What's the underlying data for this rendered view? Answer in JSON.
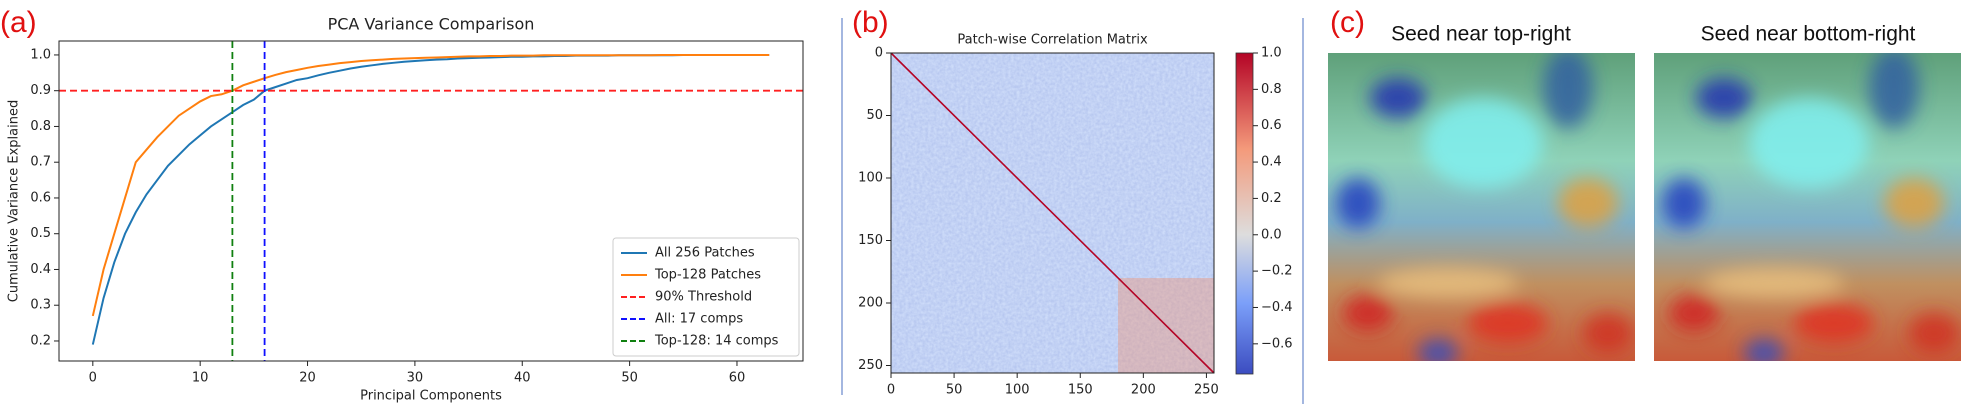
{
  "panels": [
    "(a)",
    "(b)",
    "(c)"
  ],
  "chart_data": [
    {
      "type": "line",
      "title": "PCA Variance Comparison",
      "xlabel": "Principal Components",
      "ylabel": "Cumulative Variance Explained",
      "x": [
        0,
        1,
        2,
        3,
        4,
        5,
        6,
        7,
        8,
        9,
        10,
        11,
        12,
        13,
        14,
        15,
        16,
        17,
        18,
        19,
        20,
        21,
        22,
        23,
        24,
        25,
        26,
        27,
        28,
        29,
        30,
        31,
        32,
        33,
        34,
        35,
        36,
        37,
        38,
        39,
        40,
        41,
        42,
        43,
        44,
        45,
        46,
        47,
        48,
        49,
        50,
        51,
        52,
        53,
        54,
        55,
        56,
        57,
        58,
        59,
        60,
        61,
        62,
        63
      ],
      "series": [
        {
          "name": "All 256 Patches",
          "color": "#1f77b4",
          "values": [
            0.19,
            0.32,
            0.42,
            0.5,
            0.56,
            0.61,
            0.65,
            0.69,
            0.72,
            0.75,
            0.775,
            0.8,
            0.82,
            0.84,
            0.86,
            0.875,
            0.9,
            0.91,
            0.92,
            0.93,
            0.935,
            0.943,
            0.95,
            0.956,
            0.962,
            0.967,
            0.971,
            0.975,
            0.978,
            0.981,
            0.983,
            0.985,
            0.987,
            0.988,
            0.99,
            0.991,
            0.992,
            0.993,
            0.994,
            0.995,
            0.995,
            0.996,
            0.996,
            0.997,
            0.997,
            0.998,
            0.998,
            0.998,
            0.998,
            0.999,
            0.999,
            0.999,
            0.999,
            0.999,
            0.999,
            1,
            1,
            1,
            1,
            1,
            1,
            1,
            1,
            1
          ]
        },
        {
          "name": "Top-128 Patches",
          "color": "#ff7f0e",
          "values": [
            0.27,
            0.4,
            0.5,
            0.6,
            0.7,
            0.735,
            0.77,
            0.8,
            0.83,
            0.85,
            0.87,
            0.885,
            0.89,
            0.9,
            0.915,
            0.925,
            0.935,
            0.944,
            0.952,
            0.958,
            0.964,
            0.969,
            0.973,
            0.977,
            0.98,
            0.983,
            0.985,
            0.987,
            0.989,
            0.99,
            0.991,
            0.992,
            0.993,
            0.994,
            0.995,
            0.996,
            0.996,
            0.997,
            0.997,
            0.998,
            0.998,
            0.998,
            0.999,
            0.999,
            0.999,
            0.999,
            0.999,
            0.999,
            0.999,
            0.999,
            0.999,
            0.999,
            0.999,
            1,
            1,
            1,
            1,
            1,
            1,
            1,
            1,
            1,
            1,
            1
          ]
        }
      ],
      "reference_lines": [
        {
          "name": "90% Threshold",
          "orientation": "h",
          "value": 0.9,
          "color": "#ff2020"
        },
        {
          "name": "All: 17 comps",
          "orientation": "v",
          "value": 16,
          "color": "#1010ff"
        },
        {
          "name": "Top-128: 14 comps",
          "orientation": "v",
          "value": 13,
          "color": "#108010"
        }
      ],
      "xlim": [
        -3.15,
        66.15
      ],
      "xticks": [
        0,
        10,
        20,
        30,
        40,
        50,
        60
      ],
      "ylim": [
        0.144,
        1.039
      ],
      "yticks": [
        0.2,
        0.3,
        0.4,
        0.5,
        0.6,
        0.7,
        0.8,
        0.9,
        {
          "value": 1,
          "label": "1.0"
        }
      ],
      "legend": "lower right"
    },
    {
      "type": "heatmap",
      "title": "Patch-wise Correlation Matrix",
      "xlim": [
        0,
        256
      ],
      "ylim": [
        256,
        0
      ],
      "xticks": [
        0,
        50,
        100,
        150,
        200,
        250
      ],
      "yticks": [
        0,
        50,
        100,
        150,
        200,
        250
      ],
      "clim": [
        -0.766,
        1.0
      ],
      "cticks": [
        {
          "value": -0.6,
          "label": "−0.6"
        },
        {
          "value": -0.4,
          "label": "−0.4"
        },
        {
          "value": -0.2,
          "label": "−0.2"
        },
        {
          "value": 0,
          "label": "0.0"
        },
        0.2,
        0.4,
        0.6,
        0.8,
        {
          "value": 1,
          "label": "1.0"
        }
      ]
    },
    {
      "type": "image",
      "titles": [
        "Seed near top-right",
        "Seed near bottom-right"
      ]
    }
  ]
}
